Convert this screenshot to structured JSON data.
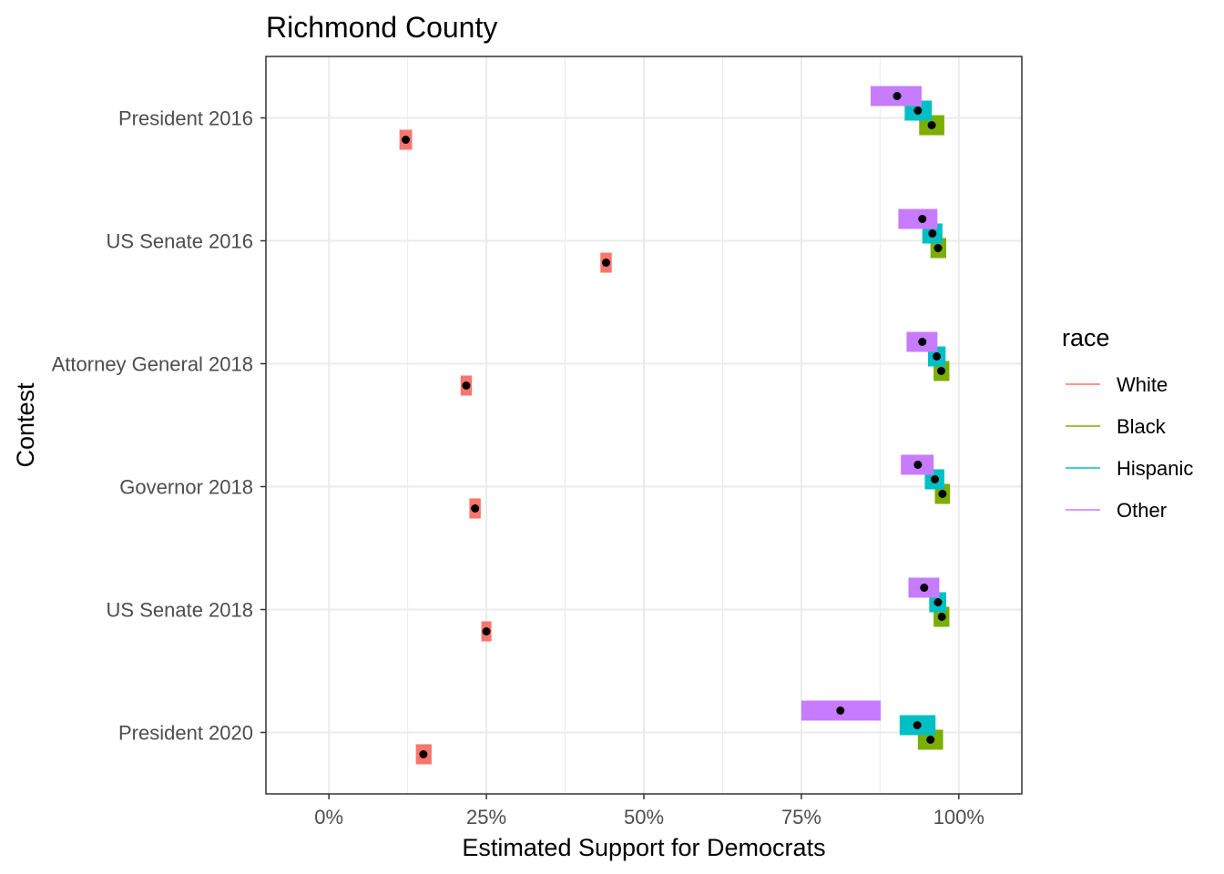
{
  "chart_data": {
    "type": "interval-point",
    "title": "Richmond County",
    "xlabel": "Estimated Support for Democrats",
    "ylabel": "Contest",
    "xlim": [
      -0.1,
      1.1
    ],
    "x_ticks": [
      {
        "value": 0,
        "label": "0%"
      },
      {
        "value": 0.25,
        "label": "25%"
      },
      {
        "value": 0.5,
        "label": "50%"
      },
      {
        "value": 0.75,
        "label": "75%"
      },
      {
        "value": 1,
        "label": "100%"
      }
    ],
    "categories": [
      "President 2016",
      "US Senate 2016",
      "Attorney General 2018",
      "Governor 2018",
      "US Senate 2018",
      "President 2020"
    ],
    "legend": {
      "title": "race",
      "position": "right"
    },
    "grid": true,
    "series": [
      {
        "name": "White",
        "color": "#F8766D",
        "points": [
          {
            "contest": "President 2016",
            "estimate": 0.122,
            "lower": 0.112,
            "upper": 0.132
          },
          {
            "contest": "US Senate 2016",
            "estimate": 0.44,
            "lower": 0.431,
            "upper": 0.449
          },
          {
            "contest": "Attorney General 2018",
            "estimate": 0.218,
            "lower": 0.209,
            "upper": 0.227
          },
          {
            "contest": "Governor 2018",
            "estimate": 0.232,
            "lower": 0.223,
            "upper": 0.241
          },
          {
            "contest": "US Senate 2018",
            "estimate": 0.25,
            "lower": 0.242,
            "upper": 0.258
          },
          {
            "contest": "President 2020",
            "estimate": 0.15,
            "lower": 0.138,
            "upper": 0.163
          }
        ]
      },
      {
        "name": "Black",
        "color": "#7CAE00",
        "points": [
          {
            "contest": "President 2016",
            "estimate": 0.957,
            "lower": 0.937,
            "upper": 0.977
          },
          {
            "contest": "US Senate 2016",
            "estimate": 0.967,
            "lower": 0.955,
            "upper": 0.98
          },
          {
            "contest": "Attorney General 2018",
            "estimate": 0.972,
            "lower": 0.96,
            "upper": 0.985
          },
          {
            "contest": "Governor 2018",
            "estimate": 0.974,
            "lower": 0.962,
            "upper": 0.986
          },
          {
            "contest": "US Senate 2018",
            "estimate": 0.973,
            "lower": 0.96,
            "upper": 0.985
          },
          {
            "contest": "President 2020",
            "estimate": 0.955,
            "lower": 0.935,
            "upper": 0.975
          }
        ]
      },
      {
        "name": "Hispanic",
        "color": "#00BFC4",
        "points": [
          {
            "contest": "President 2016",
            "estimate": 0.935,
            "lower": 0.914,
            "upper": 0.957
          },
          {
            "contest": "US Senate 2016",
            "estimate": 0.958,
            "lower": 0.942,
            "upper": 0.974
          },
          {
            "contest": "Attorney General 2018",
            "estimate": 0.965,
            "lower": 0.951,
            "upper": 0.979
          },
          {
            "contest": "Governor 2018",
            "estimate": 0.962,
            "lower": 0.946,
            "upper": 0.977
          },
          {
            "contest": "US Senate 2018",
            "estimate": 0.967,
            "lower": 0.953,
            "upper": 0.98
          },
          {
            "contest": "President 2020",
            "estimate": 0.934,
            "lower": 0.906,
            "upper": 0.963
          }
        ]
      },
      {
        "name": "Other",
        "color": "#C77CFF",
        "points": [
          {
            "contest": "President 2016",
            "estimate": 0.902,
            "lower": 0.86,
            "upper": 0.941
          },
          {
            "contest": "US Senate 2016",
            "estimate": 0.942,
            "lower": 0.904,
            "upper": 0.966
          },
          {
            "contest": "Attorney General 2018",
            "estimate": 0.942,
            "lower": 0.917,
            "upper": 0.966
          },
          {
            "contest": "Governor 2018",
            "estimate": 0.935,
            "lower": 0.908,
            "upper": 0.96
          },
          {
            "contest": "US Senate 2018",
            "estimate": 0.945,
            "lower": 0.92,
            "upper": 0.969
          },
          {
            "contest": "President 2020",
            "estimate": 0.812,
            "lower": 0.75,
            "upper": 0.876
          }
        ]
      }
    ]
  }
}
